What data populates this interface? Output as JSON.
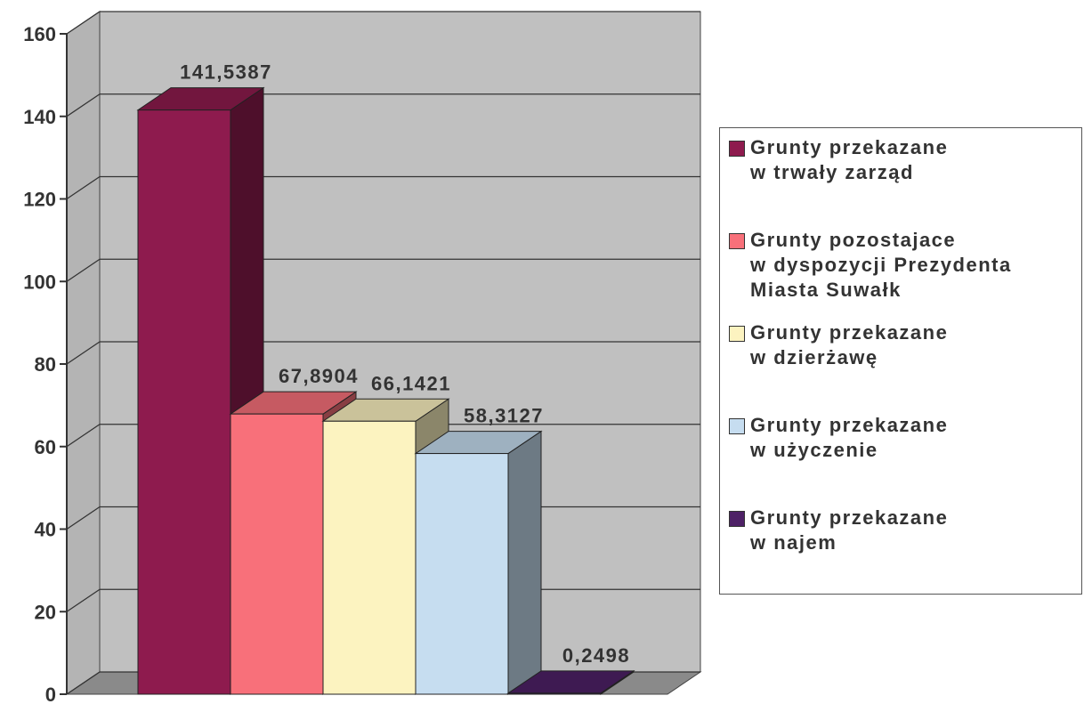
{
  "chart_data": {
    "type": "bar3d",
    "series": [
      {
        "name": "Grunty przekazane\nw trwały zarząd",
        "color": "#8e1b4e",
        "values": [
          141.5387
        ],
        "value_labels": [
          "141,5387"
        ]
      },
      {
        "name": "Grunty pozostajace\nw dyspozycji Prezydenta\nMiasta Suwałk",
        "color": "#f8707a",
        "values": [
          67.8904
        ],
        "value_labels": [
          "67,8904"
        ]
      },
      {
        "name": "Grunty przekazane\nw dzierżawę",
        "color": "#fcf3c0",
        "values": [
          66.1421
        ],
        "value_labels": [
          "66,1421"
        ]
      },
      {
        "name": "Grunty przekazane\nw  użyczenie",
        "color": "#c6ddf0",
        "values": [
          58.3127
        ],
        "value_labels": [
          "58,3127"
        ]
      },
      {
        "name": "Grunty przekazane\nw najem",
        "color": "#4e2166",
        "values": [
          0.2498
        ],
        "value_labels": [
          "0,2498"
        ]
      }
    ],
    "ylim": [
      0,
      160
    ],
    "yticks": [
      0,
      20,
      40,
      60,
      80,
      100,
      120,
      140,
      160
    ],
    "grid": true,
    "legend": "right"
  }
}
